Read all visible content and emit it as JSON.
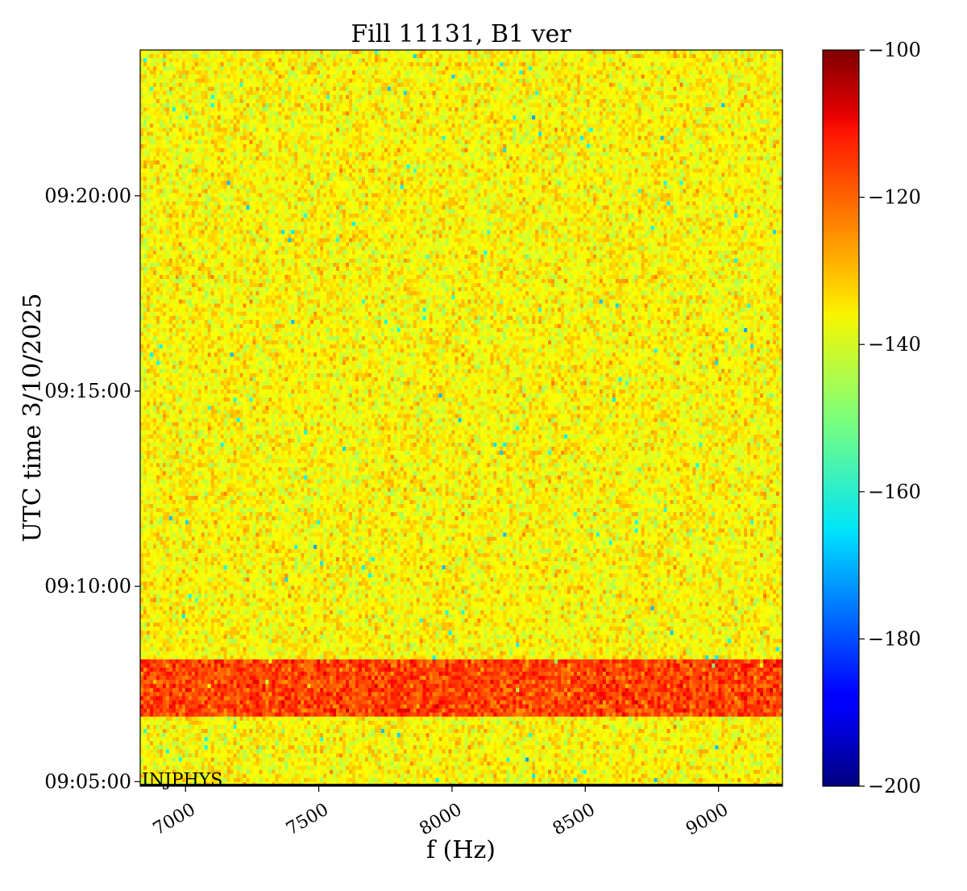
{
  "chart_data": {
    "type": "heatmap",
    "title": "Fill 11131, B1 ver",
    "xlabel": "f (Hz)",
    "ylabel": "UTC time 3/10/2025",
    "x_range": [
      6830,
      9240
    ],
    "x_ticks": [
      {
        "value": 7000,
        "label": "7000"
      },
      {
        "value": 7500,
        "label": "7500"
      },
      {
        "value": 8000,
        "label": "8000"
      },
      {
        "value": 8500,
        "label": "8500"
      },
      {
        "value": 9000,
        "label": "9000"
      }
    ],
    "y_range": [
      "09:04:53",
      "09:23:44"
    ],
    "y_ticks": [
      {
        "value": "09:05:00",
        "label": "09:05:00"
      },
      {
        "value": "09:10:00",
        "label": "09:10:00"
      },
      {
        "value": "09:15:00",
        "label": "09:15:00"
      },
      {
        "value": "09:20:00",
        "label": "09:20:00"
      }
    ],
    "colorbar": {
      "colormap": "jet",
      "range": [
        -200,
        -100
      ],
      "ticks": [
        {
          "value": -200,
          "label": "−200"
        },
        {
          "value": -180,
          "label": "−180"
        },
        {
          "value": -160,
          "label": "−160"
        },
        {
          "value": -140,
          "label": "−140"
        },
        {
          "value": -120,
          "label": "−120"
        },
        {
          "value": -100,
          "label": "−100"
        }
      ]
    },
    "background_level": -137,
    "bands": [
      {
        "from": "09:06:40",
        "to": "09:08:10",
        "level": -119
      }
    ],
    "annotations": [
      {
        "text": "INJPHYS",
        "at": "09:04:55"
      }
    ]
  }
}
